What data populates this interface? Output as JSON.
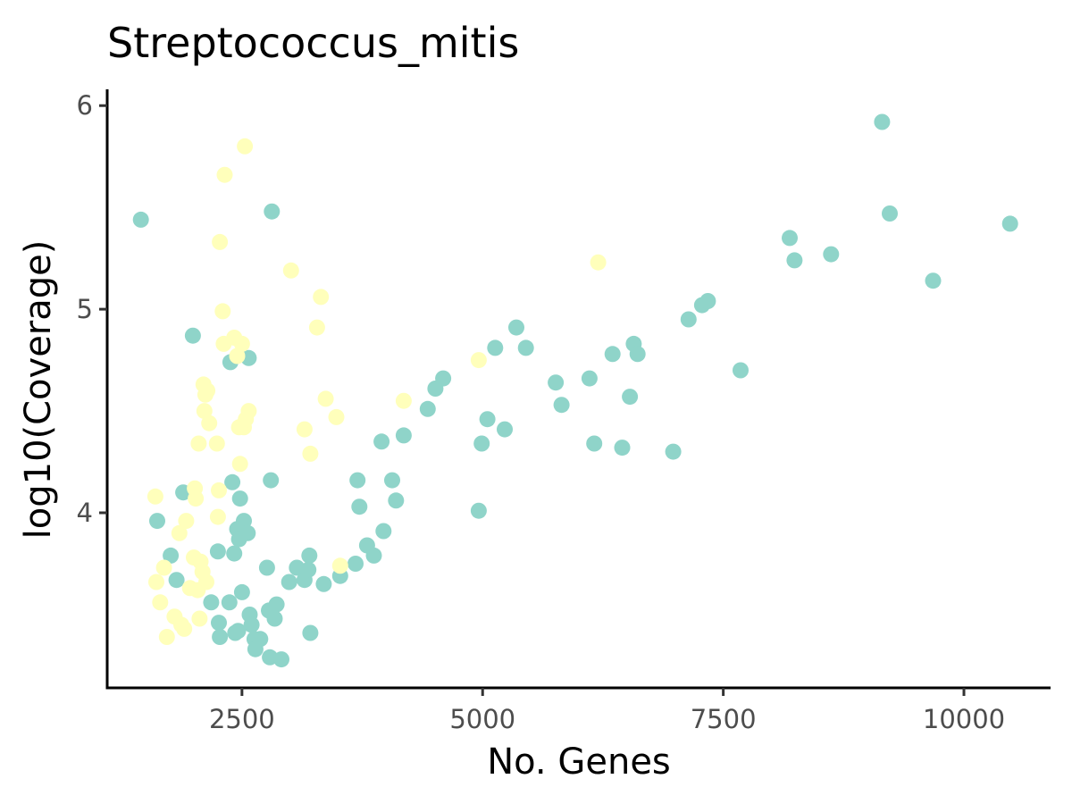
{
  "chart_data": {
    "type": "scatter",
    "title": "Streptococcus_mitis",
    "xlabel": "No. Genes",
    "ylabel": "log10(Coverage)",
    "xlim": [
      1100,
      10900
    ],
    "ylim": [
      3.14,
      6.08
    ],
    "xticks": [
      2500,
      5000,
      7500,
      10000
    ],
    "yticks": [
      4,
      5,
      6
    ],
    "grid": false,
    "legend": "none",
    "series": [
      {
        "color": "#8fd4c9",
        "points": [
          [
            1450,
            5.44
          ],
          [
            1620,
            3.96
          ],
          [
            1760,
            3.79
          ],
          [
            1820,
            3.67
          ],
          [
            1890,
            4.1
          ],
          [
            1990,
            4.87
          ],
          [
            2180,
            3.56
          ],
          [
            2250,
            3.81
          ],
          [
            2260,
            3.46
          ],
          [
            2270,
            3.39
          ],
          [
            2370,
            3.56
          ],
          [
            2380,
            4.74
          ],
          [
            2400,
            4.15
          ],
          [
            2420,
            3.8
          ],
          [
            2430,
            3.41
          ],
          [
            2450,
            3.92
          ],
          [
            2460,
            3.42
          ],
          [
            2470,
            3.87
          ],
          [
            2480,
            4.07
          ],
          [
            2500,
            3.61
          ],
          [
            2520,
            3.96
          ],
          [
            2560,
            3.9
          ],
          [
            2570,
            4.76
          ],
          [
            2580,
            3.5
          ],
          [
            2600,
            3.45
          ],
          [
            2630,
            3.38
          ],
          [
            2640,
            3.33
          ],
          [
            2690,
            3.38
          ],
          [
            2760,
            3.73
          ],
          [
            2780,
            3.52
          ],
          [
            2790,
            3.29
          ],
          [
            2800,
            4.16
          ],
          [
            2810,
            5.48
          ],
          [
            2840,
            3.48
          ],
          [
            2860,
            3.55
          ],
          [
            2910,
            3.28
          ],
          [
            2990,
            3.66
          ],
          [
            3070,
            3.73
          ],
          [
            3150,
            3.67
          ],
          [
            3190,
            3.72
          ],
          [
            3200,
            3.79
          ],
          [
            3210,
            3.41
          ],
          [
            3350,
            3.65
          ],
          [
            3520,
            3.69
          ],
          [
            3680,
            3.75
          ],
          [
            3700,
            4.16
          ],
          [
            3720,
            4.03
          ],
          [
            3800,
            3.84
          ],
          [
            3870,
            3.79
          ],
          [
            3950,
            4.35
          ],
          [
            3970,
            3.91
          ],
          [
            4060,
            4.16
          ],
          [
            4100,
            4.06
          ],
          [
            4180,
            4.38
          ],
          [
            4430,
            4.51
          ],
          [
            4510,
            4.61
          ],
          [
            4590,
            4.66
          ],
          [
            4960,
            4.01
          ],
          [
            4990,
            4.34
          ],
          [
            5050,
            4.46
          ],
          [
            5130,
            4.81
          ],
          [
            5230,
            4.41
          ],
          [
            5350,
            4.91
          ],
          [
            5450,
            4.81
          ],
          [
            5760,
            4.64
          ],
          [
            5820,
            4.53
          ],
          [
            6110,
            4.66
          ],
          [
            6160,
            4.34
          ],
          [
            6350,
            4.78
          ],
          [
            6450,
            4.32
          ],
          [
            6530,
            4.57
          ],
          [
            6570,
            4.83
          ],
          [
            6610,
            4.78
          ],
          [
            6980,
            4.3
          ],
          [
            7140,
            4.95
          ],
          [
            7280,
            5.02
          ],
          [
            7340,
            5.04
          ],
          [
            7680,
            4.7
          ],
          [
            8190,
            5.35
          ],
          [
            8240,
            5.24
          ],
          [
            8620,
            5.27
          ],
          [
            9150,
            5.92
          ],
          [
            9230,
            5.47
          ],
          [
            9680,
            5.14
          ],
          [
            10480,
            5.42
          ]
        ]
      },
      {
        "color": "#ffffbb",
        "points": [
          [
            1600,
            4.08
          ],
          [
            1610,
            3.66
          ],
          [
            1650,
            3.56
          ],
          [
            1690,
            3.73
          ],
          [
            1720,
            3.39
          ],
          [
            1800,
            3.49
          ],
          [
            1850,
            3.9
          ],
          [
            1870,
            3.45
          ],
          [
            1900,
            3.43
          ],
          [
            1920,
            3.96
          ],
          [
            1960,
            3.63
          ],
          [
            2000,
            3.78
          ],
          [
            2010,
            4.12
          ],
          [
            2020,
            4.07
          ],
          [
            2040,
            3.62
          ],
          [
            2050,
            4.34
          ],
          [
            2060,
            3.48
          ],
          [
            2070,
            3.76
          ],
          [
            2090,
            3.71
          ],
          [
            2100,
            4.63
          ],
          [
            2110,
            4.5
          ],
          [
            2120,
            4.58
          ],
          [
            2130,
            3.66
          ],
          [
            2140,
            4.6
          ],
          [
            2160,
            4.44
          ],
          [
            2240,
            4.34
          ],
          [
            2250,
            3.98
          ],
          [
            2260,
            4.11
          ],
          [
            2270,
            5.33
          ],
          [
            2300,
            4.99
          ],
          [
            2310,
            4.83
          ],
          [
            2320,
            5.66
          ],
          [
            2420,
            4.86
          ],
          [
            2450,
            4.77
          ],
          [
            2470,
            4.42
          ],
          [
            2480,
            4.24
          ],
          [
            2500,
            4.83
          ],
          [
            2520,
            4.42
          ],
          [
            2530,
            5.8
          ],
          [
            2540,
            4.46
          ],
          [
            2570,
            4.5
          ],
          [
            3010,
            5.19
          ],
          [
            3150,
            4.41
          ],
          [
            3210,
            4.29
          ],
          [
            3280,
            4.91
          ],
          [
            3320,
            5.06
          ],
          [
            3370,
            4.56
          ],
          [
            3480,
            4.47
          ],
          [
            3520,
            3.74
          ],
          [
            4180,
            4.55
          ],
          [
            4960,
            4.75
          ],
          [
            6200,
            5.23
          ]
        ]
      }
    ]
  }
}
